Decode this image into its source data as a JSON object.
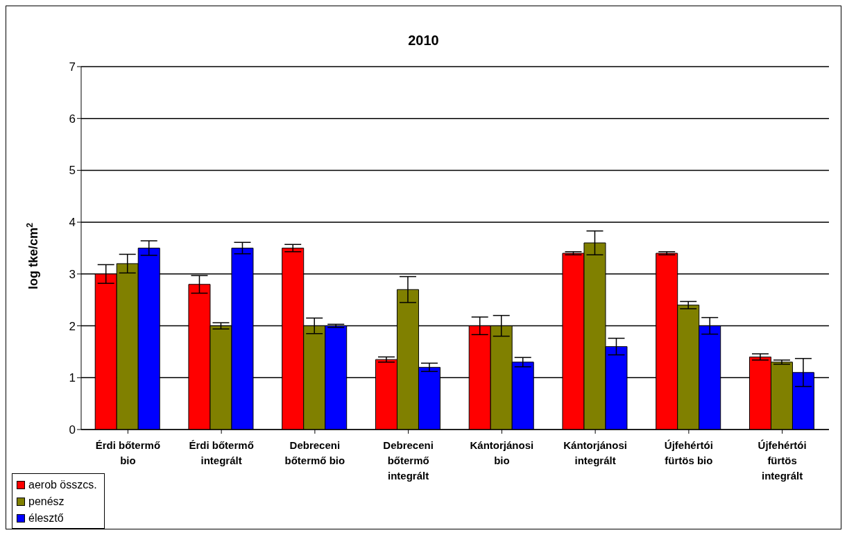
{
  "chart_data": {
    "type": "bar",
    "title": "2010",
    "ylabel": "log tke/cm$^{2}$",
    "categories": [
      "Érdi bőtermő bio",
      "Érdi bőtermő integrált",
      "Debreceni bőtermő bio",
      "Debreceni bőtermő integrált",
      "Kántorjánosi bio",
      "Kántorjánosi integrált",
      "Újfehértói fürtös bio",
      "Újfehértói fürtös integrált"
    ],
    "series": [
      {
        "name": "aerob összcs.",
        "color": "#ff0000",
        "values": [
          3.0,
          2.8,
          3.5,
          1.35,
          2.0,
          3.4,
          3.4,
          1.4
        ],
        "errors": [
          0.18,
          0.17,
          0.07,
          0.05,
          0.17,
          0.03,
          0.03,
          0.06
        ]
      },
      {
        "name": "penész",
        "color": "#808000",
        "values": [
          3.2,
          2.0,
          2.0,
          2.7,
          2.0,
          3.6,
          2.4,
          1.3
        ],
        "errors": [
          0.18,
          0.06,
          0.15,
          0.25,
          0.2,
          0.23,
          0.07,
          0.04
        ]
      },
      {
        "name": "élesztő",
        "color": "#0000ff",
        "values": [
          3.5,
          3.5,
          2.0,
          1.2,
          1.3,
          1.6,
          2.0,
          1.1
        ],
        "errors": [
          0.14,
          0.11,
          0.03,
          0.08,
          0.09,
          0.16,
          0.16,
          0.27
        ]
      }
    ],
    "ylim": [
      0,
      7
    ],
    "yticks": [
      0,
      1,
      2,
      3,
      4,
      5,
      6,
      7
    ],
    "grid": "y",
    "legend": "bottom left"
  }
}
